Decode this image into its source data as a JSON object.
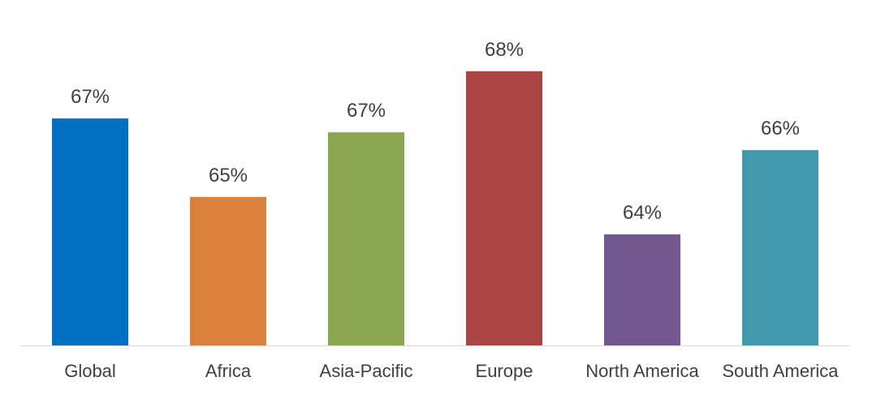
{
  "chart_data": {
    "type": "bar",
    "categories": [
      "Global",
      "Africa",
      "Asia-Pacific",
      "Europe",
      "North America",
      "South America"
    ],
    "values": [
      66.99,
      65.23,
      66.68,
      68.05,
      64.39,
      66.28
    ],
    "value_labels": [
      "67%",
      "65%",
      "67%",
      "68%",
      "64%",
      "66%"
    ],
    "colors": [
      "#0070c0",
      "#d9813c",
      "#8aa64f",
      "#a94643",
      "#71588f",
      "#4299ae"
    ],
    "ylim": [
      61.9,
      68.92
    ]
  }
}
